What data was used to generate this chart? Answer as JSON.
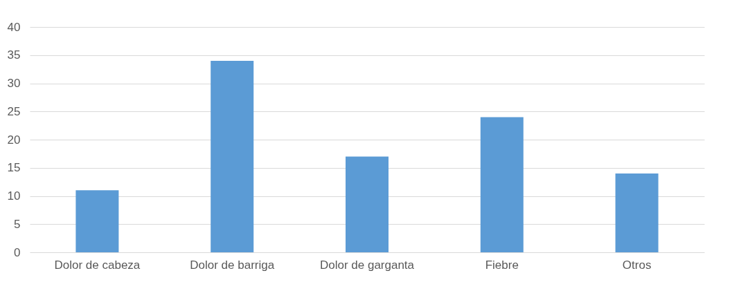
{
  "chart_data": {
    "type": "bar",
    "categories": [
      "Dolor de cabeza",
      "Dolor de barriga",
      "Dolor de garganta",
      "Fiebre",
      "Otros"
    ],
    "values": [
      11,
      34,
      17,
      24,
      14
    ],
    "color": "#5b9bd5",
    "ylim": [
      0,
      40
    ],
    "yticks": [
      0,
      5,
      10,
      15,
      20,
      25,
      30,
      35,
      40
    ],
    "grid": "y"
  }
}
